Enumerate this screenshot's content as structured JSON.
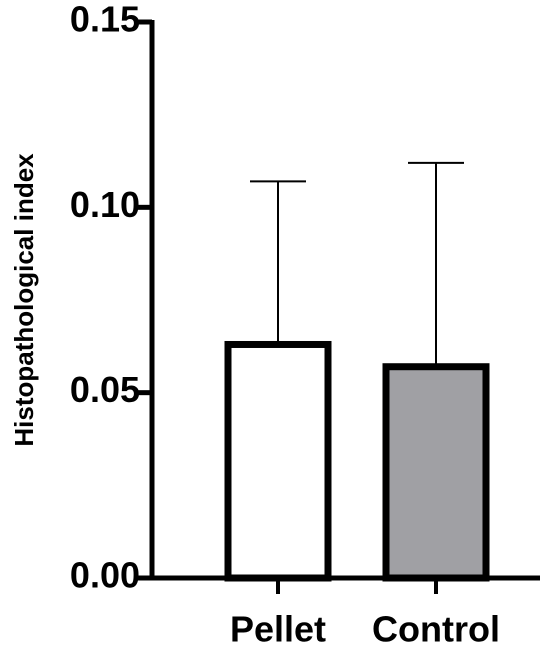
{
  "chart_data": {
    "type": "bar",
    "ylabel": "Histopathological index",
    "categories": [
      "Pellet",
      "Control"
    ],
    "values": [
      0.063,
      0.057
    ],
    "errors": [
      0.044,
      0.055
    ],
    "colors": [
      "#ffffff",
      "#a0a0a4"
    ],
    "ylim": [
      0,
      0.15
    ],
    "yticks": [
      {
        "value": 0,
        "label": "0.00"
      },
      {
        "value": 0.05,
        "label": "0.05"
      },
      {
        "value": 0.1,
        "label": "0.10"
      },
      {
        "value": 0.15,
        "label": "0.15"
      }
    ]
  }
}
